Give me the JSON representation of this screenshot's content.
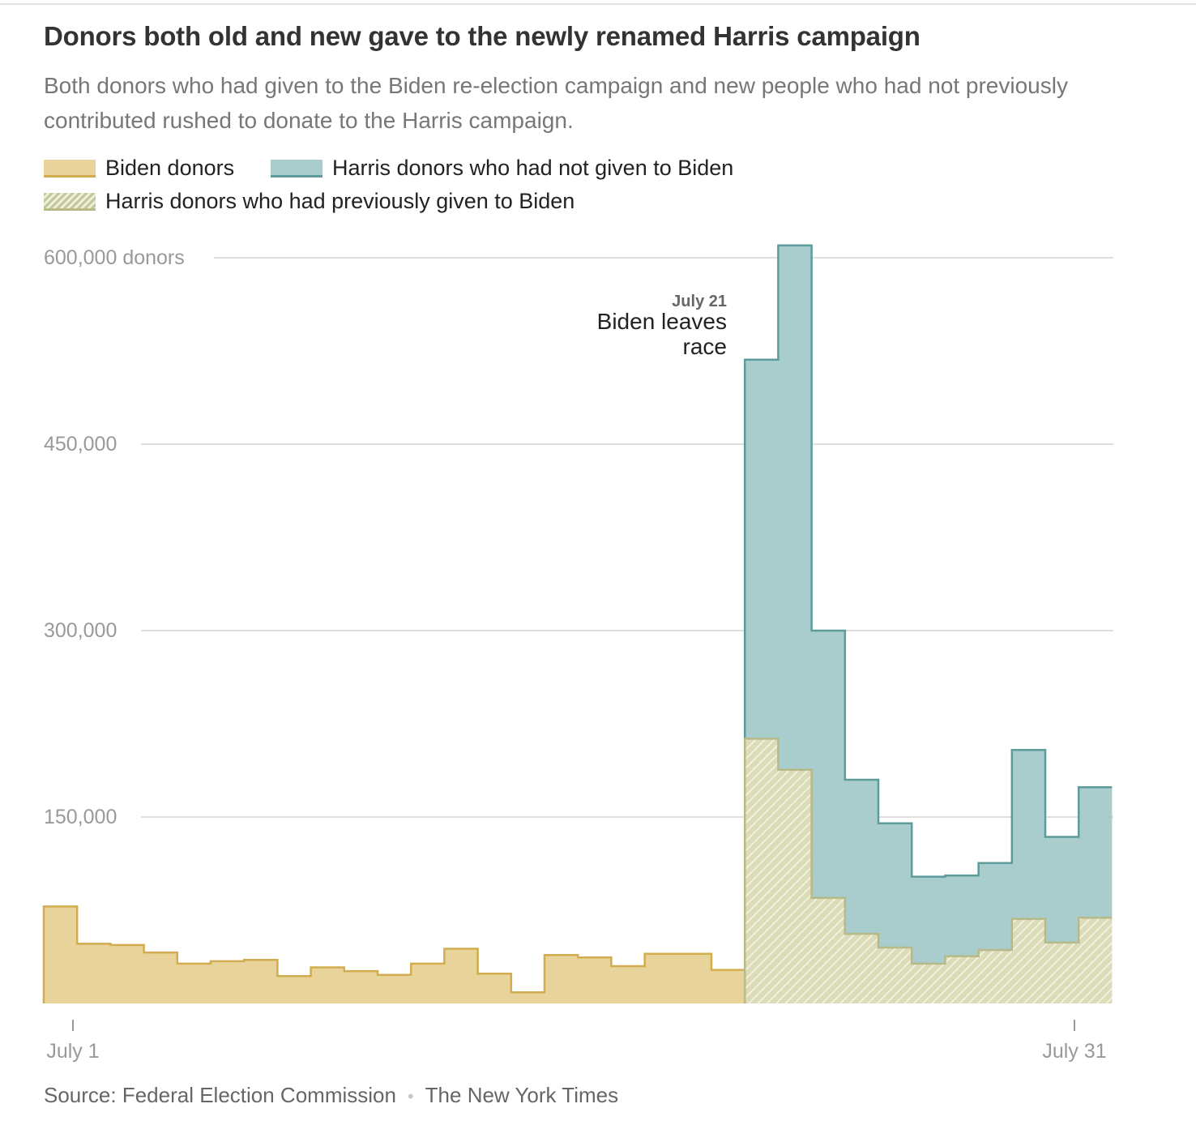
{
  "header": {
    "title": "Donors both old and new gave to the newly renamed Harris campaign",
    "subtitle": "Both donors who had given to the Biden re-election campaign and new people who had not previously contributed rushed to donate to the Harris campaign."
  },
  "legend": {
    "items": [
      {
        "label": "Biden donors",
        "color": "#e8d39a"
      },
      {
        "label": "Harris donors who had not given to Biden",
        "color": "#a9cccc"
      },
      {
        "label": "Harris donors who had previously given to Biden",
        "color": "#c4c79a"
      }
    ]
  },
  "footer": {
    "source": "Source: Federal Election Commission",
    "credit": "The New York Times"
  },
  "chart_data": {
    "type": "area",
    "step": true,
    "days": [
      1,
      2,
      3,
      4,
      5,
      6,
      7,
      8,
      9,
      10,
      11,
      12,
      13,
      14,
      15,
      16,
      17,
      18,
      19,
      20,
      21,
      22,
      23,
      24,
      25,
      26,
      27,
      28,
      29,
      30,
      31,
      32
    ],
    "ylim": [
      0,
      600000
    ],
    "y_ticks": [
      {
        "value": 150000,
        "label": "150,000"
      },
      {
        "value": 300000,
        "label": "300,000"
      },
      {
        "value": 450000,
        "label": "450,000"
      },
      {
        "value": 600000,
        "label": "600,000 donors"
      }
    ],
    "x_ticks": [
      {
        "day": 1,
        "label": "July 1"
      },
      {
        "day": 31,
        "label": "July 31"
      }
    ],
    "grid": true,
    "series": [
      {
        "name": "Biden donors",
        "start_day": 1,
        "values": [
          78000,
          48000,
          47000,
          41000,
          32000,
          34000,
          35000,
          22000,
          29000,
          26000,
          23000,
          32000,
          44000,
          24000,
          9000,
          39000,
          37000,
          30000,
          40000,
          40000,
          27000
        ],
        "fill": "#e8d39a",
        "stroke": "#d2ad4f"
      },
      {
        "name": "Harris donors who had previously given to Biden",
        "start_day": 22,
        "values": [
          213000,
          188000,
          85000,
          56000,
          45000,
          32000,
          38000,
          43000,
          68000,
          49000,
          69000
        ],
        "fill": "#c4c79a",
        "stroke": "#b7b989"
      },
      {
        "name": "Harris donors who had not given to Biden",
        "start_day": 22,
        "totals": [
          518000,
          610000,
          300000,
          180000,
          145000,
          102000,
          103000,
          113000,
          204000,
          134000,
          174000
        ],
        "fill": "#a9cccc",
        "stroke": "#5e9c9c"
      }
    ],
    "annotation": {
      "day": 22,
      "date_label": "July 21",
      "lines": [
        "Biden leaves",
        "race"
      ]
    }
  }
}
